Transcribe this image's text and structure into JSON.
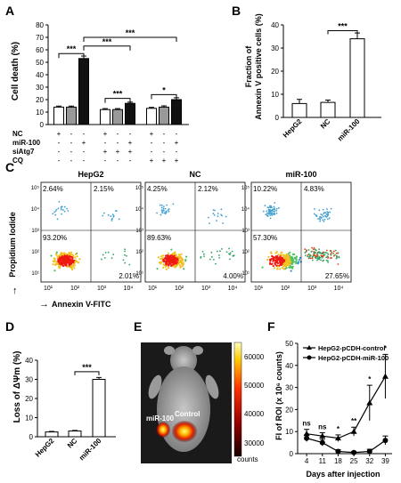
{
  "panel_letters": [
    "A",
    "B",
    "C",
    "D",
    "E",
    "F"
  ],
  "chart_data": [
    {
      "panel": "A",
      "type": "bar",
      "ylabel": "Cell death (%)",
      "ylim": [
        0,
        80
      ],
      "yticks": [
        "0",
        "10",
        "20",
        "30",
        "40",
        "50",
        "60",
        "70",
        "80"
      ],
      "values": [
        14,
        14,
        53,
        12,
        12,
        17,
        13,
        14,
        20
      ],
      "errors": [
        0.8,
        0.8,
        2,
        0.8,
        0.8,
        1,
        0.8,
        1,
        1.5
      ],
      "fills": [
        "#ffffff",
        "#999999",
        "#111111",
        "#ffffff",
        "#999999",
        "#111111",
        "#ffffff",
        "#999999",
        "#111111"
      ],
      "table_rows": [
        {
          "name": "NC",
          "marks": [
            "+",
            "-",
            "-",
            "+",
            "-",
            "-",
            "+",
            "-",
            "-"
          ]
        },
        {
          "name": "miR-100",
          "marks": [
            "-",
            "-",
            "+",
            "-",
            "-",
            "+",
            "-",
            "-",
            "+"
          ]
        },
        {
          "name": "siAtg7",
          "marks": [
            "-",
            "-",
            "-",
            "+",
            "+",
            "+",
            "-",
            "-",
            "-"
          ]
        },
        {
          "name": "CQ",
          "marks": [
            "-",
            "-",
            "-",
            "-",
            "-",
            "-",
            "+",
            "+",
            "+"
          ]
        }
      ],
      "significance": [
        "***",
        "***",
        "***",
        "***",
        "*"
      ]
    },
    {
      "panel": "B",
      "type": "bar",
      "ylabel": "Fraction of Annexin V positive cells (%)",
      "ylim": [
        0,
        40
      ],
      "yticks": [
        "0",
        "10",
        "20",
        "30",
        "40"
      ],
      "categories": [
        "HepG2",
        "NC",
        "miR-100"
      ],
      "values": [
        6,
        6.5,
        34
      ],
      "errors": [
        1.8,
        1,
        2.5
      ],
      "significance": "***"
    },
    {
      "panel": "C",
      "type": "scatter",
      "xlabel": "Annexin V-FITC",
      "ylabel": "Propidium Iodide",
      "plots": [
        {
          "title": "HepG2",
          "quadrants": [
            "2.64%",
            "2.15%",
            "93.20%",
            "2.01%"
          ]
        },
        {
          "title": "NC",
          "quadrants": [
            "4.25%",
            "2.12%",
            "89.63%",
            "4.00%"
          ]
        },
        {
          "title": "miR-100",
          "quadrants": [
            "10.22%",
            "4.83%",
            "57.30%",
            "27.65%"
          ]
        }
      ],
      "xticks": [
        "10⁰",
        "10¹",
        "10²",
        "10³",
        "10⁴",
        "10⁵"
      ],
      "yticks": [
        "10⁰",
        "10¹",
        "10²",
        "10³",
        "10⁴",
        "10⁵"
      ]
    },
    {
      "panel": "D",
      "type": "bar",
      "ylabel": "Loss of ΔΨm (%)",
      "ylim": [
        0,
        40
      ],
      "yticks": [
        "0",
        "10",
        "20",
        "30",
        "40"
      ],
      "categories": [
        "HepG2",
        "NC",
        "miR-100"
      ],
      "values": [
        2.5,
        3,
        30
      ],
      "errors": [
        0.3,
        0.3,
        1
      ],
      "significance": "***"
    },
    {
      "panel": "E",
      "type": "heatmap",
      "labels": [
        "miR-100",
        "Control"
      ],
      "colorbar_ticks": [
        "60000",
        "50000",
        "40000",
        "30000"
      ],
      "colorbar_unit": "counts"
    },
    {
      "panel": "F",
      "type": "line",
      "xlabel": "Days after injection",
      "ylabel": "FI of ROI (x 10⁶ counts)",
      "ylim": [
        0,
        50
      ],
      "yticks": [
        "0",
        "10",
        "20",
        "30",
        "40",
        "50"
      ],
      "x": [
        4,
        11,
        18,
        25,
        32,
        39
      ],
      "series": [
        {
          "name": "HepG2-pCDH-control",
          "marker": "triangle",
          "values": [
            9,
            8,
            7,
            10,
            23,
            35
          ],
          "errors": [
            2,
            1.5,
            1.5,
            2,
            8,
            10
          ]
        },
        {
          "name": "HepG2-pCDH-miR-100",
          "marker": "circle",
          "values": [
            7,
            5,
            1,
            0.5,
            1,
            6
          ],
          "errors": [
            1.5,
            1.5,
            0.8,
            0.5,
            1,
            2
          ]
        }
      ],
      "significance": [
        "ns",
        "ns",
        "*",
        "**",
        "*",
        "*"
      ]
    }
  ]
}
